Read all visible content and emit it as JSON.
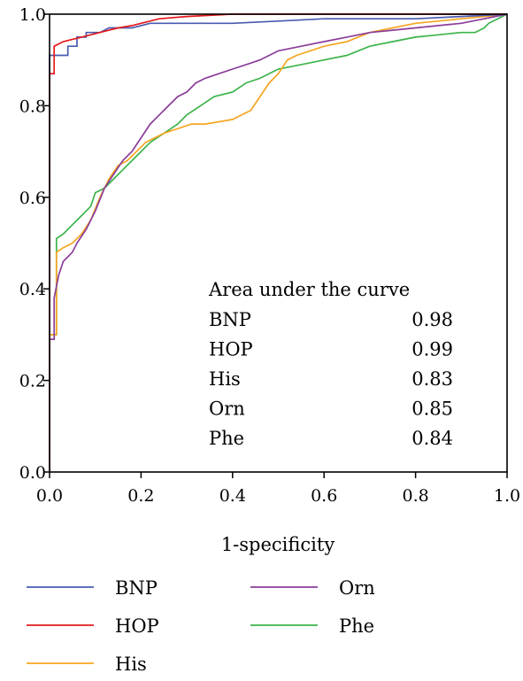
{
  "chart_data": {
    "type": "line",
    "xlabel": "1-specificity",
    "ylabel": "",
    "xlim": [
      0,
      1
    ],
    "ylim": [
      0,
      1
    ],
    "xticks": [
      "0.0",
      "0.2",
      "0.4",
      "0.6",
      "0.8",
      "1.0"
    ],
    "yticks": [
      "0.0",
      "0.2",
      "0.4",
      "0.6",
      "0.8",
      "1.0"
    ],
    "grid": false,
    "legend_position": "bottom",
    "auc_table": {
      "title": "Area under the curve",
      "rows": [
        {
          "name": "BNP",
          "value": "0.98"
        },
        {
          "name": "HOP",
          "value": "0.99"
        },
        {
          "name": "His",
          "value": "0.83"
        },
        {
          "name": "Orn",
          "value": "0.85"
        },
        {
          "name": "Phe",
          "value": "0.84"
        }
      ]
    },
    "series": [
      {
        "name": "BNP",
        "color": "#4a5bb0",
        "x": [
          0,
          0,
          0.04,
          0.04,
          0.06,
          0.06,
          0.08,
          0.08,
          0.11,
          0.13,
          0.18,
          0.22,
          0.4,
          0.5,
          0.6,
          0.8,
          0.9,
          1.0
        ],
        "y": [
          0,
          0.91,
          0.91,
          0.93,
          0.93,
          0.95,
          0.95,
          0.96,
          0.96,
          0.97,
          0.97,
          0.98,
          0.98,
          0.985,
          0.99,
          0.99,
          0.995,
          1.0
        ]
      },
      {
        "name": "HOP",
        "color": "#e31a1c",
        "x": [
          0,
          0,
          0.01,
          0.01,
          0.02,
          0.03,
          0.05,
          0.07,
          0.09,
          0.11,
          0.13,
          0.15,
          0.18,
          0.2,
          0.24,
          0.3,
          0.4,
          0.6,
          1.0
        ],
        "y": [
          0,
          0.87,
          0.87,
          0.93,
          0.935,
          0.94,
          0.945,
          0.95,
          0.955,
          0.96,
          0.965,
          0.97,
          0.975,
          0.98,
          0.99,
          0.995,
          1.0,
          1.0,
          1.0
        ]
      },
      {
        "name": "His",
        "color": "#f5a623",
        "x": [
          0,
          0,
          0.015,
          0.015,
          0.03,
          0.05,
          0.07,
          0.09,
          0.11,
          0.13,
          0.15,
          0.17,
          0.19,
          0.21,
          0.23,
          0.25,
          0.28,
          0.31,
          0.34,
          0.37,
          0.4,
          0.42,
          0.44,
          0.46,
          0.48,
          0.5,
          0.52,
          0.54,
          0.57,
          0.6,
          0.65,
          0.7,
          0.75,
          0.8,
          0.85,
          0.9,
          0.95,
          1.0
        ],
        "y": [
          0,
          0.3,
          0.3,
          0.48,
          0.49,
          0.5,
          0.52,
          0.55,
          0.6,
          0.64,
          0.67,
          0.68,
          0.7,
          0.72,
          0.73,
          0.74,
          0.75,
          0.76,
          0.76,
          0.765,
          0.77,
          0.78,
          0.79,
          0.82,
          0.85,
          0.87,
          0.9,
          0.91,
          0.92,
          0.93,
          0.94,
          0.96,
          0.97,
          0.98,
          0.985,
          0.99,
          0.995,
          1.0
        ]
      },
      {
        "name": "Orn",
        "color": "#8b3d9a",
        "x": [
          0,
          0,
          0.01,
          0.01,
          0.02,
          0.03,
          0.04,
          0.05,
          0.06,
          0.08,
          0.1,
          0.12,
          0.14,
          0.16,
          0.18,
          0.2,
          0.22,
          0.24,
          0.26,
          0.28,
          0.3,
          0.32,
          0.34,
          0.37,
          0.4,
          0.43,
          0.46,
          0.5,
          0.55,
          0.6,
          0.65,
          0.7,
          0.75,
          0.8,
          0.85,
          0.9,
          0.95,
          1.0
        ],
        "y": [
          0,
          0.29,
          0.29,
          0.38,
          0.43,
          0.46,
          0.47,
          0.48,
          0.5,
          0.53,
          0.57,
          0.62,
          0.65,
          0.68,
          0.7,
          0.73,
          0.76,
          0.78,
          0.8,
          0.82,
          0.83,
          0.85,
          0.86,
          0.87,
          0.88,
          0.89,
          0.9,
          0.92,
          0.93,
          0.94,
          0.95,
          0.96,
          0.965,
          0.97,
          0.975,
          0.98,
          0.99,
          1.0
        ]
      },
      {
        "name": "Phe",
        "color": "#3cb44b",
        "x": [
          0,
          0,
          0.015,
          0.015,
          0.03,
          0.05,
          0.07,
          0.09,
          0.1,
          0.12,
          0.14,
          0.16,
          0.18,
          0.2,
          0.22,
          0.25,
          0.28,
          0.3,
          0.33,
          0.36,
          0.4,
          0.43,
          0.46,
          0.5,
          0.55,
          0.6,
          0.65,
          0.7,
          0.75,
          0.8,
          0.85,
          0.9,
          0.93,
          0.95,
          0.96,
          1.0
        ],
        "y": [
          0,
          0.3,
          0.3,
          0.51,
          0.52,
          0.54,
          0.56,
          0.58,
          0.61,
          0.62,
          0.64,
          0.66,
          0.68,
          0.7,
          0.72,
          0.74,
          0.76,
          0.78,
          0.8,
          0.82,
          0.83,
          0.85,
          0.86,
          0.88,
          0.89,
          0.9,
          0.91,
          0.93,
          0.94,
          0.95,
          0.955,
          0.96,
          0.96,
          0.97,
          0.98,
          1.0
        ]
      }
    ]
  }
}
